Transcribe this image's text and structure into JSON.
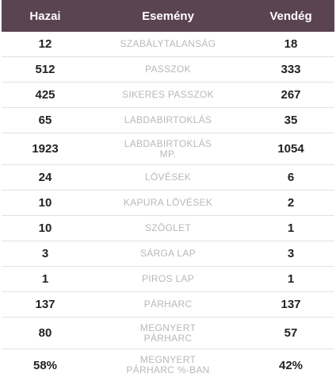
{
  "header": {
    "home": "Hazai",
    "event": "Esemény",
    "away": "Vendég"
  },
  "rows": [
    {
      "home": "12",
      "event": "SZABÁLYTALANSÁG",
      "away": "18"
    },
    {
      "home": "512",
      "event": "PASSZOK",
      "away": "333"
    },
    {
      "home": "425",
      "event": "SIKERES PASSZOK",
      "away": "267"
    },
    {
      "home": "65",
      "event": "LABDABIRTOKLÁS",
      "away": "35"
    },
    {
      "home": "1923",
      "event": "LABDABIRTOKLÁS MP.",
      "away": "1054"
    },
    {
      "home": "24",
      "event": "LÖVÉSEK",
      "away": "6"
    },
    {
      "home": "10",
      "event": "KAPURA LÖVÉSEK",
      "away": "2"
    },
    {
      "home": "10",
      "event": "SZÖGLET",
      "away": "1"
    },
    {
      "home": "3",
      "event": "SÁRGA LAP",
      "away": "3"
    },
    {
      "home": "1",
      "event": "PIROS LAP",
      "away": "1"
    },
    {
      "home": "137",
      "event": "PÁRHARC",
      "away": "137"
    },
    {
      "home": "80",
      "event": "MEGNYERT PÁRHARC",
      "away": "57"
    },
    {
      "home": "58%",
      "event": "MEGNYERT PÁRHARC %-BAN",
      "away": "42%"
    }
  ]
}
